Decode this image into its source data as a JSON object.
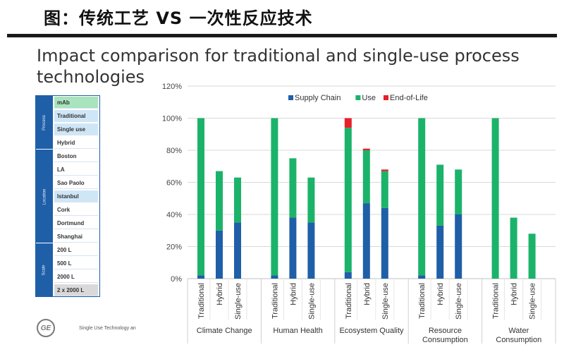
{
  "header": {
    "title": "图：传统工艺 VS 一次性反应技术"
  },
  "slide": {
    "title": "Impact comparison for traditional and single-use process technologies"
  },
  "selector": {
    "groups": [
      {
        "label": "Process",
        "rows": [
          {
            "text": "mAb",
            "style": "green"
          },
          {
            "text": "Traditional",
            "style": "blue"
          },
          {
            "text": "Single use",
            "style": "blue"
          },
          {
            "text": "Hybrid",
            "style": "plain"
          }
        ]
      },
      {
        "label": "Location",
        "rows": [
          {
            "text": "Boston",
            "style": "plain"
          },
          {
            "text": "LA",
            "style": "plain"
          },
          {
            "text": "Sao Paolo",
            "style": "plain"
          },
          {
            "text": "Istanbul",
            "style": "blue"
          },
          {
            "text": "Cork",
            "style": "plain"
          },
          {
            "text": "Dortmund",
            "style": "plain"
          },
          {
            "text": "Shanghai",
            "style": "plain"
          }
        ]
      },
      {
        "label": "Scale",
        "rows": [
          {
            "text": "200 L",
            "style": "plain"
          },
          {
            "text": "500 L",
            "style": "plain"
          },
          {
            "text": "2000 L",
            "style": "plain"
          },
          {
            "text": "2 x 2000 L",
            "style": "gray"
          }
        ]
      }
    ]
  },
  "footer": {
    "text": "Single Use Technology an",
    "logo_text": "GE"
  },
  "colors": {
    "supply_chain": "#1f5fa8",
    "use": "#1bb36a",
    "end_of_life": "#e8202a"
  },
  "chart_data": {
    "type": "bar",
    "stacked": true,
    "ylim": [
      0,
      120
    ],
    "yticks": [
      0,
      20,
      40,
      60,
      80,
      100,
      120
    ],
    "ytick_labels": [
      "0%",
      "20%",
      "40%",
      "60%",
      "80%",
      "100%",
      "120%"
    ],
    "grid": true,
    "legend_position": "top-center",
    "groups": [
      "Climate Change",
      "Human Health",
      "Ecosystem Quality",
      "Resource Consumption",
      "Water Consumption"
    ],
    "group_label_lines": [
      [
        "Climate Change"
      ],
      [
        "Human Health"
      ],
      [
        "Ecosystem Quality"
      ],
      [
        "Resource",
        "Consumption"
      ],
      [
        "Water",
        "Consumption"
      ]
    ],
    "categories": [
      "Traditional",
      "Hybrid",
      "Single-use"
    ],
    "series": [
      {
        "name": "Supply Chain",
        "color": "#1f5fa8",
        "values": [
          [
            2,
            30,
            35
          ],
          [
            2,
            38,
            35
          ],
          [
            4,
            47,
            44
          ],
          [
            2,
            33,
            40
          ],
          [
            0,
            0,
            0
          ]
        ]
      },
      {
        "name": "Use",
        "color": "#1bb36a",
        "values": [
          [
            98,
            37,
            28
          ],
          [
            98,
            37,
            28
          ],
          [
            90,
            33,
            23
          ],
          [
            98,
            38,
            28
          ],
          [
            100,
            38,
            28
          ]
        ]
      },
      {
        "name": "End-of-Life",
        "color": "#e8202a",
        "values": [
          [
            0,
            0,
            0
          ],
          [
            0,
            0,
            0
          ],
          [
            6,
            1,
            1
          ],
          [
            0,
            0,
            0
          ],
          [
            0,
            0,
            0
          ]
        ]
      }
    ]
  }
}
